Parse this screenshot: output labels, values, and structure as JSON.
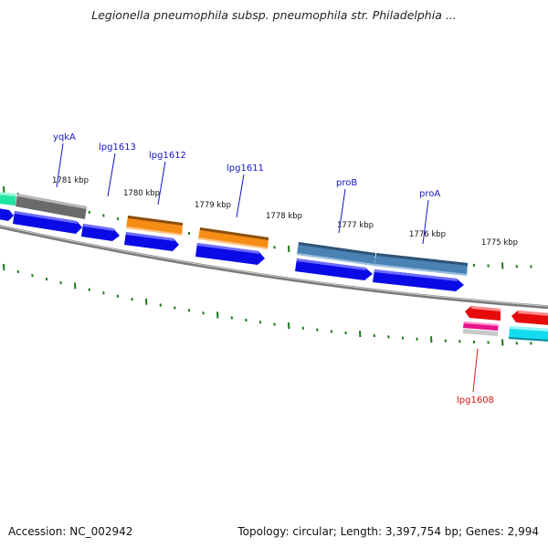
{
  "title": "Legionella pneumophila subsp. pneumophila str. Philadelphia ...",
  "footer": {
    "accession": "Accession: NC_002942",
    "summary": "Topology: circular; Length: 3,397,754 bp; Genes: 2,994"
  },
  "ticks": [
    "1781 kbp",
    "1780 kbp",
    "1779 kbp",
    "1778 kbp",
    "1777 kbp",
    "1776 kbp",
    "1775 kbp"
  ],
  "gene_labels": [
    "yqkA",
    "lpg1613",
    "lpg1612",
    "lpg1611",
    "proB",
    "proA",
    "lpg1608"
  ],
  "colors": {
    "label_blue": "#1414c8",
    "label_red": "#d81414",
    "tick_green": "#1a7a1a",
    "cds_blue": "#0a0ae6",
    "orange": "#f58c14",
    "steelblue": "#4a82b4",
    "gray": "#707070",
    "teal": "#1ee6a0",
    "red": "#e60a0a",
    "pink": "#e6148c",
    "cyan": "#14dcf0"
  }
}
